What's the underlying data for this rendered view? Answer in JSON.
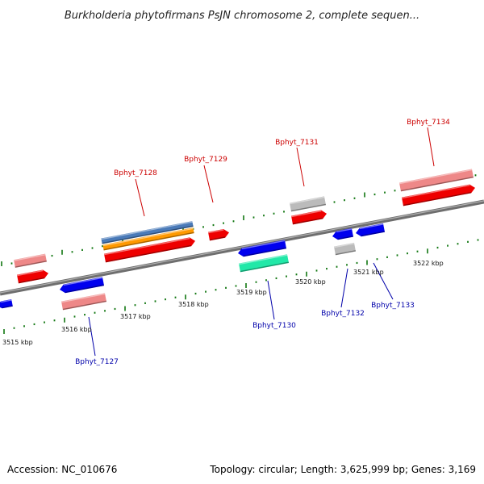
{
  "title": "Burkholderia phytofirmans PsJN chromosome 2, complete sequen...",
  "footer": {
    "accession": "Accession: NC_010676",
    "topology": "Topology: circular; Length: 3,625,999 bp; Genes: 3,169"
  },
  "colors": {
    "plus_label": "#cc0000",
    "minus_label": "#0000aa",
    "red": "#ee0000",
    "pink": "#ee8888",
    "blue": "#0000ee",
    "gray": "#bbbbbb",
    "steelblue": "#4a7ab8",
    "orange": "#ff9900",
    "teal": "#22e8a8",
    "tick": "#117711",
    "backbone": "#888888"
  },
  "ticks": [
    "3515 kbp",
    "3516 kbp",
    "3517 kbp",
    "3518 kbp",
    "3519 kbp",
    "3520 kbp",
    "3521 kbp",
    "3522 kbp"
  ],
  "genes": [
    {
      "label": "Bphyt_7127",
      "strand": "minus"
    },
    {
      "label": "Bphyt_7128",
      "strand": "plus"
    },
    {
      "label": "Bphyt_7129",
      "strand": "plus"
    },
    {
      "label": "Bphyt_7130",
      "strand": "minus"
    },
    {
      "label": "Bphyt_7131",
      "strand": "plus"
    },
    {
      "label": "Bphyt_7132",
      "strand": "minus"
    },
    {
      "label": "Bphyt_7133",
      "strand": "minus"
    },
    {
      "label": "Bphyt_7134",
      "strand": "plus"
    }
  ]
}
